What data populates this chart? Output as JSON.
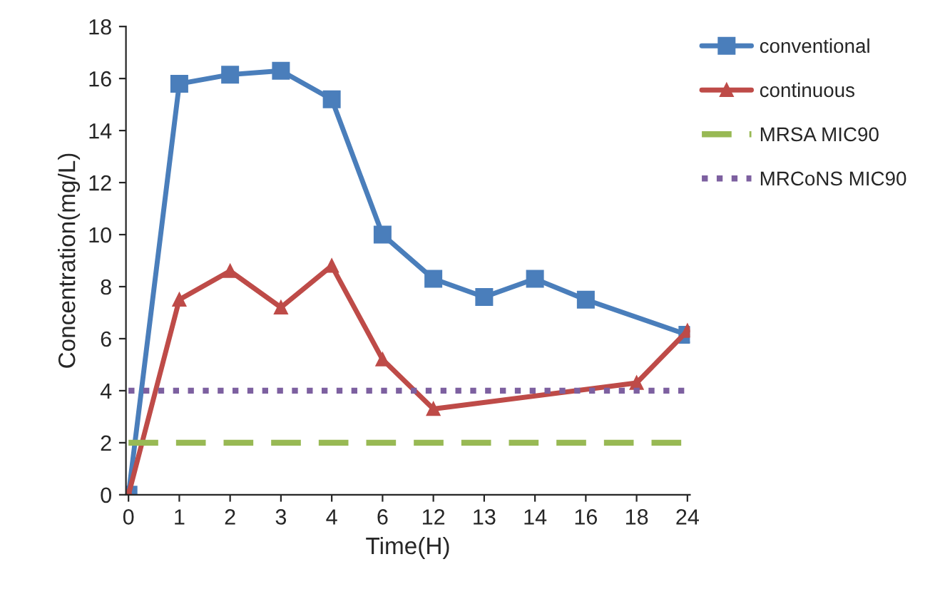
{
  "chart_data": {
    "type": "line",
    "xlabel": "Time(H)",
    "ylabel": "Concentration(mg/L)",
    "categories": [
      "0",
      "1",
      "2",
      "3",
      "4",
      "6",
      "12",
      "13",
      "14",
      "16",
      "18",
      "24"
    ],
    "series": [
      {
        "name": "conventional",
        "color": "#4a7ebb",
        "marker": "square",
        "line_style": "solid",
        "values": [
          0,
          15.8,
          16.15,
          16.3,
          15.2,
          10.0,
          8.3,
          7.6,
          8.3,
          7.5,
          null,
          6.15
        ]
      },
      {
        "name": "continuous",
        "color": "#be4b48",
        "marker": "triangle",
        "line_style": "solid",
        "values": [
          0,
          7.5,
          8.6,
          7.2,
          8.8,
          5.2,
          3.3,
          null,
          null,
          null,
          4.3,
          6.3
        ]
      },
      {
        "name": "MRSA MIC90",
        "color": "#98b954",
        "marker": "none",
        "line_style": "dashed",
        "values": [
          2,
          2,
          2,
          2,
          2,
          2,
          2,
          2,
          2,
          2,
          2,
          2
        ]
      },
      {
        "name": "MRCoNS MIC90",
        "color": "#7d60a0",
        "marker": "none",
        "line_style": "dotted",
        "values": [
          4,
          4,
          4,
          4,
          4,
          4,
          4,
          4,
          4,
          4,
          4,
          4
        ]
      }
    ],
    "ylim": [
      0,
      18
    ],
    "yticks": [
      0,
      2,
      4,
      6,
      8,
      10,
      12,
      14,
      16,
      18
    ],
    "grid": false,
    "legend": "right"
  }
}
